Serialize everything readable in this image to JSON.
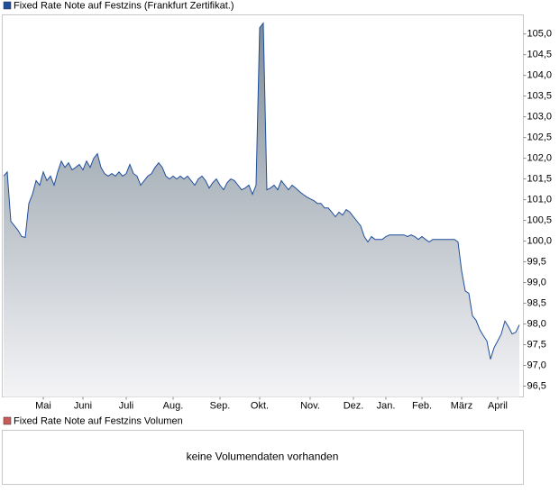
{
  "chart_data": {
    "type": "area",
    "series": [
      {
        "name": "Fixed Rate Note auf Festzins (Frankfurt Zertifikat.)",
        "color": "#1f4e9c",
        "values": [
          101.57,
          101.67,
          100.48,
          100.37,
          100.26,
          100.11,
          100.09,
          100.91,
          101.13,
          101.46,
          101.35,
          101.67,
          101.46,
          101.57,
          101.35,
          101.67,
          101.93,
          101.78,
          101.89,
          101.72,
          101.78,
          101.85,
          101.72,
          101.93,
          101.78,
          102.0,
          102.11,
          101.78,
          101.63,
          101.57,
          101.63,
          101.57,
          101.67,
          101.57,
          101.63,
          101.85,
          101.63,
          101.57,
          101.35,
          101.46,
          101.57,
          101.63,
          101.78,
          101.89,
          101.78,
          101.57,
          101.5,
          101.57,
          101.5,
          101.57,
          101.5,
          101.57,
          101.46,
          101.35,
          101.5,
          101.57,
          101.46,
          101.28,
          101.41,
          101.5,
          101.35,
          101.24,
          101.41,
          101.5,
          101.46,
          101.35,
          101.24,
          101.28,
          101.35,
          101.13,
          101.35,
          105.15,
          105.26,
          101.24,
          101.28,
          101.35,
          101.24,
          101.46,
          101.35,
          101.24,
          101.35,
          101.28,
          101.2,
          101.13,
          101.07,
          101.02,
          100.98,
          100.91,
          100.91,
          100.8,
          100.8,
          100.7,
          100.59,
          100.7,
          100.63,
          100.76,
          100.7,
          100.59,
          100.48,
          100.37,
          100.11,
          99.98,
          100.11,
          100.04,
          100.04,
          100.04,
          100.11,
          100.15,
          100.15,
          100.15,
          100.15,
          100.15,
          100.11,
          100.15,
          100.11,
          100.04,
          100.11,
          100.04,
          99.98,
          100.04,
          100.04,
          100.04,
          100.04,
          100.04,
          100.04,
          100.04,
          99.98,
          99.28,
          98.8,
          98.74,
          98.2,
          98.09,
          97.87,
          97.72,
          97.59,
          97.15,
          97.43,
          97.59,
          97.76,
          98.07,
          97.93,
          97.76,
          97.8,
          97.98
        ]
      }
    ],
    "xlim": [
      0,
      143
    ],
    "xticks": [
      {
        "value": 11,
        "label": "Mai"
      },
      {
        "value": 22,
        "label": "Juni"
      },
      {
        "value": 34,
        "label": "Juli"
      },
      {
        "value": 47,
        "label": "Aug."
      },
      {
        "value": 60,
        "label": "Sep."
      },
      {
        "value": 71,
        "label": "Okt."
      },
      {
        "value": 85,
        "label": "Nov."
      },
      {
        "value": 97,
        "label": "Dez."
      },
      {
        "value": 106,
        "label": "Jan."
      },
      {
        "value": 116,
        "label": "Feb."
      },
      {
        "value": 127,
        "label": "März"
      },
      {
        "value": 137,
        "label": "April"
      }
    ],
    "ylim": [
      96.24,
      105.46
    ],
    "yticks": [
      {
        "value": 96.5,
        "label": "96,5"
      },
      {
        "value": 97,
        "label": "97,0"
      },
      {
        "value": 97.5,
        "label": "97,5"
      },
      {
        "value": 98,
        "label": "98,0"
      },
      {
        "value": 98.5,
        "label": "98,5"
      },
      {
        "value": 99,
        "label": "99,0"
      },
      {
        "value": 99.5,
        "label": "99,5"
      },
      {
        "value": 100,
        "label": "100,0"
      },
      {
        "value": 100.5,
        "label": "100,5"
      },
      {
        "value": 101,
        "label": "101,0"
      },
      {
        "value": 101.5,
        "label": "101,5"
      },
      {
        "value": 102,
        "label": "102,0"
      },
      {
        "value": 102.5,
        "label": "102,5"
      },
      {
        "value": 103,
        "label": "103,0"
      },
      {
        "value": 103.5,
        "label": "103,5"
      },
      {
        "value": 104,
        "label": "104,0"
      },
      {
        "value": 104.5,
        "label": "104,5"
      },
      {
        "value": 105,
        "label": "105,0"
      }
    ],
    "grid": false
  },
  "volume_panel": {
    "legend": "Fixed Rate Note auf Festzins Volumen",
    "legend_color": "#c85a5a",
    "message": "keine Volumendaten vorhanden"
  }
}
